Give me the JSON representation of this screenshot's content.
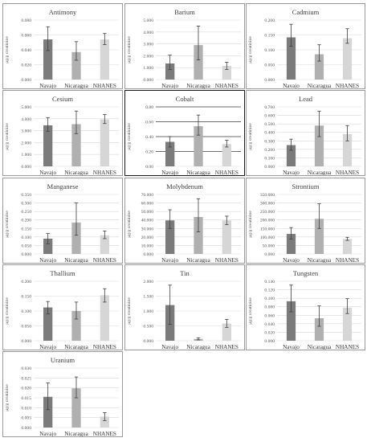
{
  "colors": {
    "navajo": "#7b7b7b",
    "nicaragua": "#b0b0b0",
    "nhanes": "#d6d6d6",
    "grid": "#d9d9d9",
    "error_bar": "#404040",
    "boxed_grid": "#3a3a3a"
  },
  "chart_data": [
    {
      "type": "bar",
      "title": "Antimony",
      "ylabel": "μg/g creatinine",
      "categories": [
        "Navajo",
        "Nicaragua",
        "NHANES"
      ],
      "ylim": [
        0,
        0.08
      ],
      "yticks": [
        "0.000",
        "0.020",
        "0.040",
        "0.060",
        "0.080"
      ],
      "values": [
        0.054,
        0.037,
        0.054
      ],
      "error_low": [
        0.039,
        0.026,
        0.047
      ],
      "error_high": [
        0.071,
        0.051,
        0.062
      ]
    },
    {
      "type": "bar",
      "title": "Barium",
      "ylabel": "μg/g creatinine",
      "categories": [
        "Navajo",
        "Nicaragua",
        "NHANES"
      ],
      "ylim": [
        0,
        5
      ],
      "yticks": [
        "0.000",
        "1.000",
        "2.000",
        "3.000",
        "4.000",
        "5.000"
      ],
      "values": [
        1.35,
        2.9,
        1.15
      ],
      "error_low": [
        0.85,
        1.65,
        0.85
      ],
      "error_high": [
        2.05,
        4.5,
        1.45
      ]
    },
    {
      "type": "bar",
      "title": "Cadmium",
      "ylabel": "μg/g creatinine",
      "categories": [
        "Navajo",
        "Nicaragua",
        "NHANES"
      ],
      "ylim": [
        0,
        0.2
      ],
      "yticks": [
        "0.000",
        "0.050",
        "0.100",
        "0.150",
        "0.200"
      ],
      "values": [
        0.142,
        0.085,
        0.139
      ],
      "error_low": [
        0.112,
        0.062,
        0.122
      ],
      "error_high": [
        0.186,
        0.117,
        0.171
      ]
    },
    {
      "type": "bar",
      "title": "Cesium",
      "ylabel": "μg/g creatinine",
      "categories": [
        "Navajo",
        "Nicaragua",
        "NHANES"
      ],
      "ylim": [
        0,
        5
      ],
      "yticks": [
        "0.000",
        "1.000",
        "2.000",
        "3.000",
        "4.000",
        "5.000"
      ],
      "values": [
        3.45,
        3.55,
        3.95
      ],
      "error_low": [
        2.95,
        2.75,
        3.6
      ],
      "error_high": [
        4.1,
        4.65,
        4.35
      ]
    },
    {
      "type": "bar",
      "title": "Cobalt",
      "ylabel": "μg/g creatinine",
      "categories": [
        "Navajo",
        "Nicaragua",
        "NHANES"
      ],
      "ylim": [
        0,
        0.8
      ],
      "yticks": [
        "0.00",
        "0.20",
        "0.40",
        "0.60",
        "0.80"
      ],
      "values": [
        0.33,
        0.54,
        0.3
      ],
      "error_low": [
        0.26,
        0.42,
        0.26
      ],
      "error_high": [
        0.4,
        0.69,
        0.35
      ],
      "boxed": true
    },
    {
      "type": "bar",
      "title": "Lead",
      "ylabel": "μg/g creatinine",
      "categories": [
        "Navajo",
        "Nicaragua",
        "NHANES"
      ],
      "ylim": [
        0,
        0.7
      ],
      "yticks": [
        "0.000",
        "0.100",
        "0.200",
        "0.300",
        "0.400",
        "0.500",
        "0.600",
        "0.700"
      ],
      "values": [
        0.25,
        0.48,
        0.38
      ],
      "error_low": [
        0.19,
        0.35,
        0.3
      ],
      "error_high": [
        0.32,
        0.65,
        0.48
      ]
    },
    {
      "type": "bar",
      "title": "Manganese",
      "ylabel": "μg/g creatinine",
      "categories": [
        "Navajo",
        "Nicaragua",
        "NHANES"
      ],
      "ylim": [
        0,
        0.35
      ],
      "yticks": [
        "0.000",
        "0.050",
        "0.100",
        "0.150",
        "0.200",
        "0.250",
        "0.300",
        "0.350"
      ],
      "values": [
        0.09,
        0.185,
        0.11
      ],
      "error_low": [
        0.06,
        0.11,
        0.09
      ],
      "error_high": [
        0.12,
        0.3,
        0.135
      ]
    },
    {
      "type": "bar",
      "title": "Molybdenum",
      "ylabel": "μg/g creatinine",
      "categories": [
        "Navajo",
        "Nicaragua",
        "NHANES"
      ],
      "ylim": [
        0,
        70
      ],
      "yticks": [
        "0.000",
        "10.000",
        "20.000",
        "30.000",
        "40.000",
        "50.000",
        "60.000",
        "70.000"
      ],
      "values": [
        39.5,
        43.5,
        39.5
      ],
      "error_low": [
        30.0,
        26.0,
        34.5
      ],
      "error_high": [
        52.0,
        65.0,
        44.5
      ]
    },
    {
      "type": "bar",
      "title": "Strontium",
      "ylabel": "μg/g creatinine",
      "categories": [
        "Navajo",
        "Nicaragua",
        "NHANES"
      ],
      "ylim": [
        0,
        350
      ],
      "yticks": [
        "0.000",
        "50.000",
        "100.000",
        "150.000",
        "200.000",
        "250.000",
        "300.000",
        "350.000"
      ],
      "values": [
        118,
        207,
        88
      ],
      "error_low": [
        88,
        150,
        80
      ],
      "error_high": [
        155,
        295,
        98
      ]
    },
    {
      "type": "bar",
      "title": "Thallium",
      "ylabel": "μg/g creatinine",
      "categories": [
        "Navajo",
        "Nicaragua",
        "NHANES"
      ],
      "ylim": [
        0,
        0.2
      ],
      "yticks": [
        "0.000",
        "0.050",
        "0.100",
        "0.150",
        "0.200"
      ],
      "values": [
        0.112,
        0.1,
        0.153
      ],
      "error_low": [
        0.09,
        0.073,
        0.13
      ],
      "error_high": [
        0.132,
        0.13,
        0.175
      ]
    },
    {
      "type": "bar",
      "title": "Tin",
      "ylabel": "μg/g creatinine",
      "categories": [
        "Navajo",
        "Nicaragua",
        "NHANES"
      ],
      "ylim": [
        0,
        2
      ],
      "yticks": [
        "0.000",
        "0.500",
        "1.000",
        "1.500",
        "2.000"
      ],
      "values": [
        1.2,
        0.06,
        0.58
      ],
      "error_low": [
        0.55,
        0.03,
        0.45
      ],
      "error_high": [
        1.87,
        0.1,
        0.72
      ]
    },
    {
      "type": "bar",
      "title": "Tungsten",
      "ylabel": "μg/g creatinine",
      "categories": [
        "Navajo",
        "Nicaragua",
        "NHANES"
      ],
      "ylim": [
        0,
        0.14
      ],
      "yticks": [
        "0.000",
        "0.020",
        "0.040",
        "0.060",
        "0.080",
        "0.100",
        "0.120",
        "0.140"
      ],
      "values": [
        0.093,
        0.053,
        0.078
      ],
      "error_low": [
        0.068,
        0.034,
        0.064
      ],
      "error_high": [
        0.131,
        0.082,
        0.099
      ]
    },
    {
      "type": "bar",
      "title": "Uranium",
      "ylabel": "μg/g creatinine",
      "categories": [
        "Navajo",
        "Nicaragua",
        "NHANES"
      ],
      "ylim": [
        0,
        0.03
      ],
      "yticks": [
        "0.000",
        "0.005",
        "0.010",
        "0.015",
        "0.020",
        "0.025",
        "0.030"
      ],
      "values": [
        0.0155,
        0.0198,
        0.0055
      ],
      "error_low": [
        0.009,
        0.015,
        0.0035
      ],
      "error_high": [
        0.0225,
        0.0255,
        0.0075
      ]
    }
  ]
}
